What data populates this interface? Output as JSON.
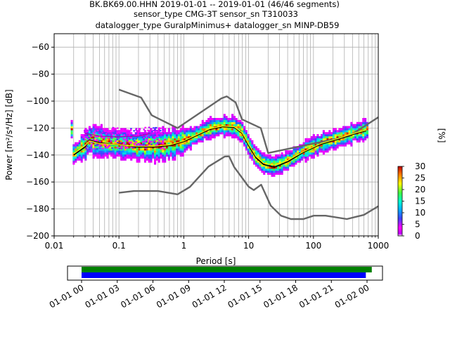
{
  "chart_data": [
    {
      "type": "heatmap",
      "title_lines": [
        "BK.BK69.00.HHN   2019-01-01 -- 2019-01-01  (46/46 segments)",
        "sensor_type CMG-3T sensor_sn T310033",
        "datalogger_type GuralpMinimus+ datalogger_sn MINP-DB59"
      ],
      "xlabel": "Period [s]",
      "ylabel": "Power [m²/s⁴/Hz] [dB]",
      "xscale": "log",
      "xlim": [
        0.01,
        1000
      ],
      "ylim": [
        -200,
        -50
      ],
      "xticks": [
        0.01,
        0.1,
        1,
        10,
        100,
        1000
      ],
      "xtick_labels": [
        "0.01",
        "0.1",
        "1",
        "10",
        "100",
        "1000"
      ],
      "yticks": [
        -200,
        -180,
        -160,
        -140,
        -120,
        -100,
        -80,
        -60
      ],
      "ytick_labels": [
        "−200",
        "−180",
        "−160",
        "−140",
        "−120",
        "−100",
        "−80",
        "−60"
      ],
      "grid": true,
      "colorbar": {
        "label": "[%]",
        "range": [
          0,
          30
        ],
        "ticks": [
          0,
          5,
          10,
          15,
          20,
          25,
          30
        ],
        "tick_labels": [
          "0",
          "5",
          "10",
          "15",
          "20",
          "25",
          "30"
        ]
      },
      "series": [
        {
          "role": "high_noise_model",
          "color": "#666666",
          "points": [
            [
              0.1,
              -91.5
            ],
            [
              0.22,
              -97.4
            ],
            [
              0.32,
              -110.5
            ],
            [
              0.8,
              -120
            ],
            [
              3.8,
              -98
            ],
            [
              4.6,
              -96.5
            ],
            [
              6.3,
              -101
            ],
            [
              7.9,
              -113.5
            ],
            [
              15.4,
              -120
            ],
            [
              20,
              -138.5
            ],
            [
              354.8,
              -126
            ],
            [
              1000,
              -112
            ]
          ]
        },
        {
          "role": "low_noise_model",
          "color": "#666666",
          "points": [
            [
              0.1,
              -168
            ],
            [
              0.17,
              -166.7
            ],
            [
              0.4,
              -166.7
            ],
            [
              0.8,
              -169.2
            ],
            [
              1.24,
              -163.7
            ],
            [
              2.4,
              -148.6
            ],
            [
              4.3,
              -141.1
            ],
            [
              5,
              -141
            ],
            [
              6,
              -149
            ],
            [
              10,
              -163.5
            ],
            [
              12,
              -166
            ],
            [
              15.6,
              -162
            ],
            [
              21.9,
              -177.5
            ],
            [
              31.6,
              -185
            ],
            [
              45,
              -187.5
            ],
            [
              70,
              -187.5
            ],
            [
              101,
              -185
            ],
            [
              154,
              -185
            ],
            [
              328,
              -187.5
            ],
            [
              600,
              -184.4
            ],
            [
              1000,
              -178
            ]
          ]
        },
        {
          "role": "mode",
          "color": "#000000",
          "points": [
            [
              0.02,
              -140
            ],
            [
              0.03,
              -134
            ],
            [
              0.035,
              -129
            ],
            [
              0.05,
              -131
            ],
            [
              0.08,
              -132
            ],
            [
              0.13,
              -133
            ],
            [
              0.2,
              -134
            ],
            [
              0.35,
              -134
            ],
            [
              0.6,
              -133
            ],
            [
              1,
              -130
            ],
            [
              1.5,
              -126
            ],
            [
              2.5,
              -121
            ],
            [
              4,
              -119
            ],
            [
              6,
              -119.5
            ],
            [
              8,
              -124
            ],
            [
              10,
              -133
            ],
            [
              13,
              -142
            ],
            [
              17,
              -147
            ],
            [
              25,
              -149
            ],
            [
              40,
              -145
            ],
            [
              70,
              -138
            ],
            [
              130,
              -132
            ],
            [
              250,
              -128
            ],
            [
              450,
              -124
            ],
            [
              650,
              -122
            ]
          ]
        },
        {
          "role": "mean",
          "color": "#ffff00",
          "points": [
            [
              0.02,
              -139
            ],
            [
              0.03,
              -133
            ],
            [
              0.035,
              -129.5
            ],
            [
              0.05,
              -131.5
            ],
            [
              0.08,
              -132
            ],
            [
              0.13,
              -133
            ],
            [
              0.2,
              -133.5
            ],
            [
              0.35,
              -133.5
            ],
            [
              0.6,
              -132.5
            ],
            [
              1,
              -129.5
            ],
            [
              1.5,
              -125.5
            ],
            [
              2.5,
              -120.5
            ],
            [
              4,
              -118.5
            ],
            [
              6,
              -119
            ],
            [
              8,
              -123.5
            ],
            [
              10,
              -132
            ],
            [
              13,
              -141
            ],
            [
              17,
              -146
            ],
            [
              25,
              -147.5
            ],
            [
              40,
              -144
            ],
            [
              70,
              -137.5
            ],
            [
              130,
              -131.5
            ],
            [
              250,
              -127.5
            ],
            [
              450,
              -123.5
            ],
            [
              650,
              -121.5
            ]
          ]
        },
        {
          "role": "median",
          "color": "#b000b0",
          "points": [
            [
              0.03,
              -124
            ],
            [
              0.05,
              -126
            ],
            [
              0.1,
              -126.5
            ],
            [
              0.2,
              -126
            ],
            [
              0.3,
              -124
            ]
          ]
        }
      ]
    },
    {
      "type": "timeline",
      "xtick_labels": [
        "01-01 00",
        "01-01 03",
        "01-01 06",
        "01-01 09",
        "01-01 12",
        "01-01 15",
        "01-01 18",
        "01-01 21",
        "01-02 00"
      ],
      "bars": [
        {
          "color": "#008000",
          "start_hour": 0,
          "end_hour": 24.4
        },
        {
          "color": "#0000ff",
          "start_hour": 0,
          "end_hour": 23.9
        }
      ]
    }
  ]
}
